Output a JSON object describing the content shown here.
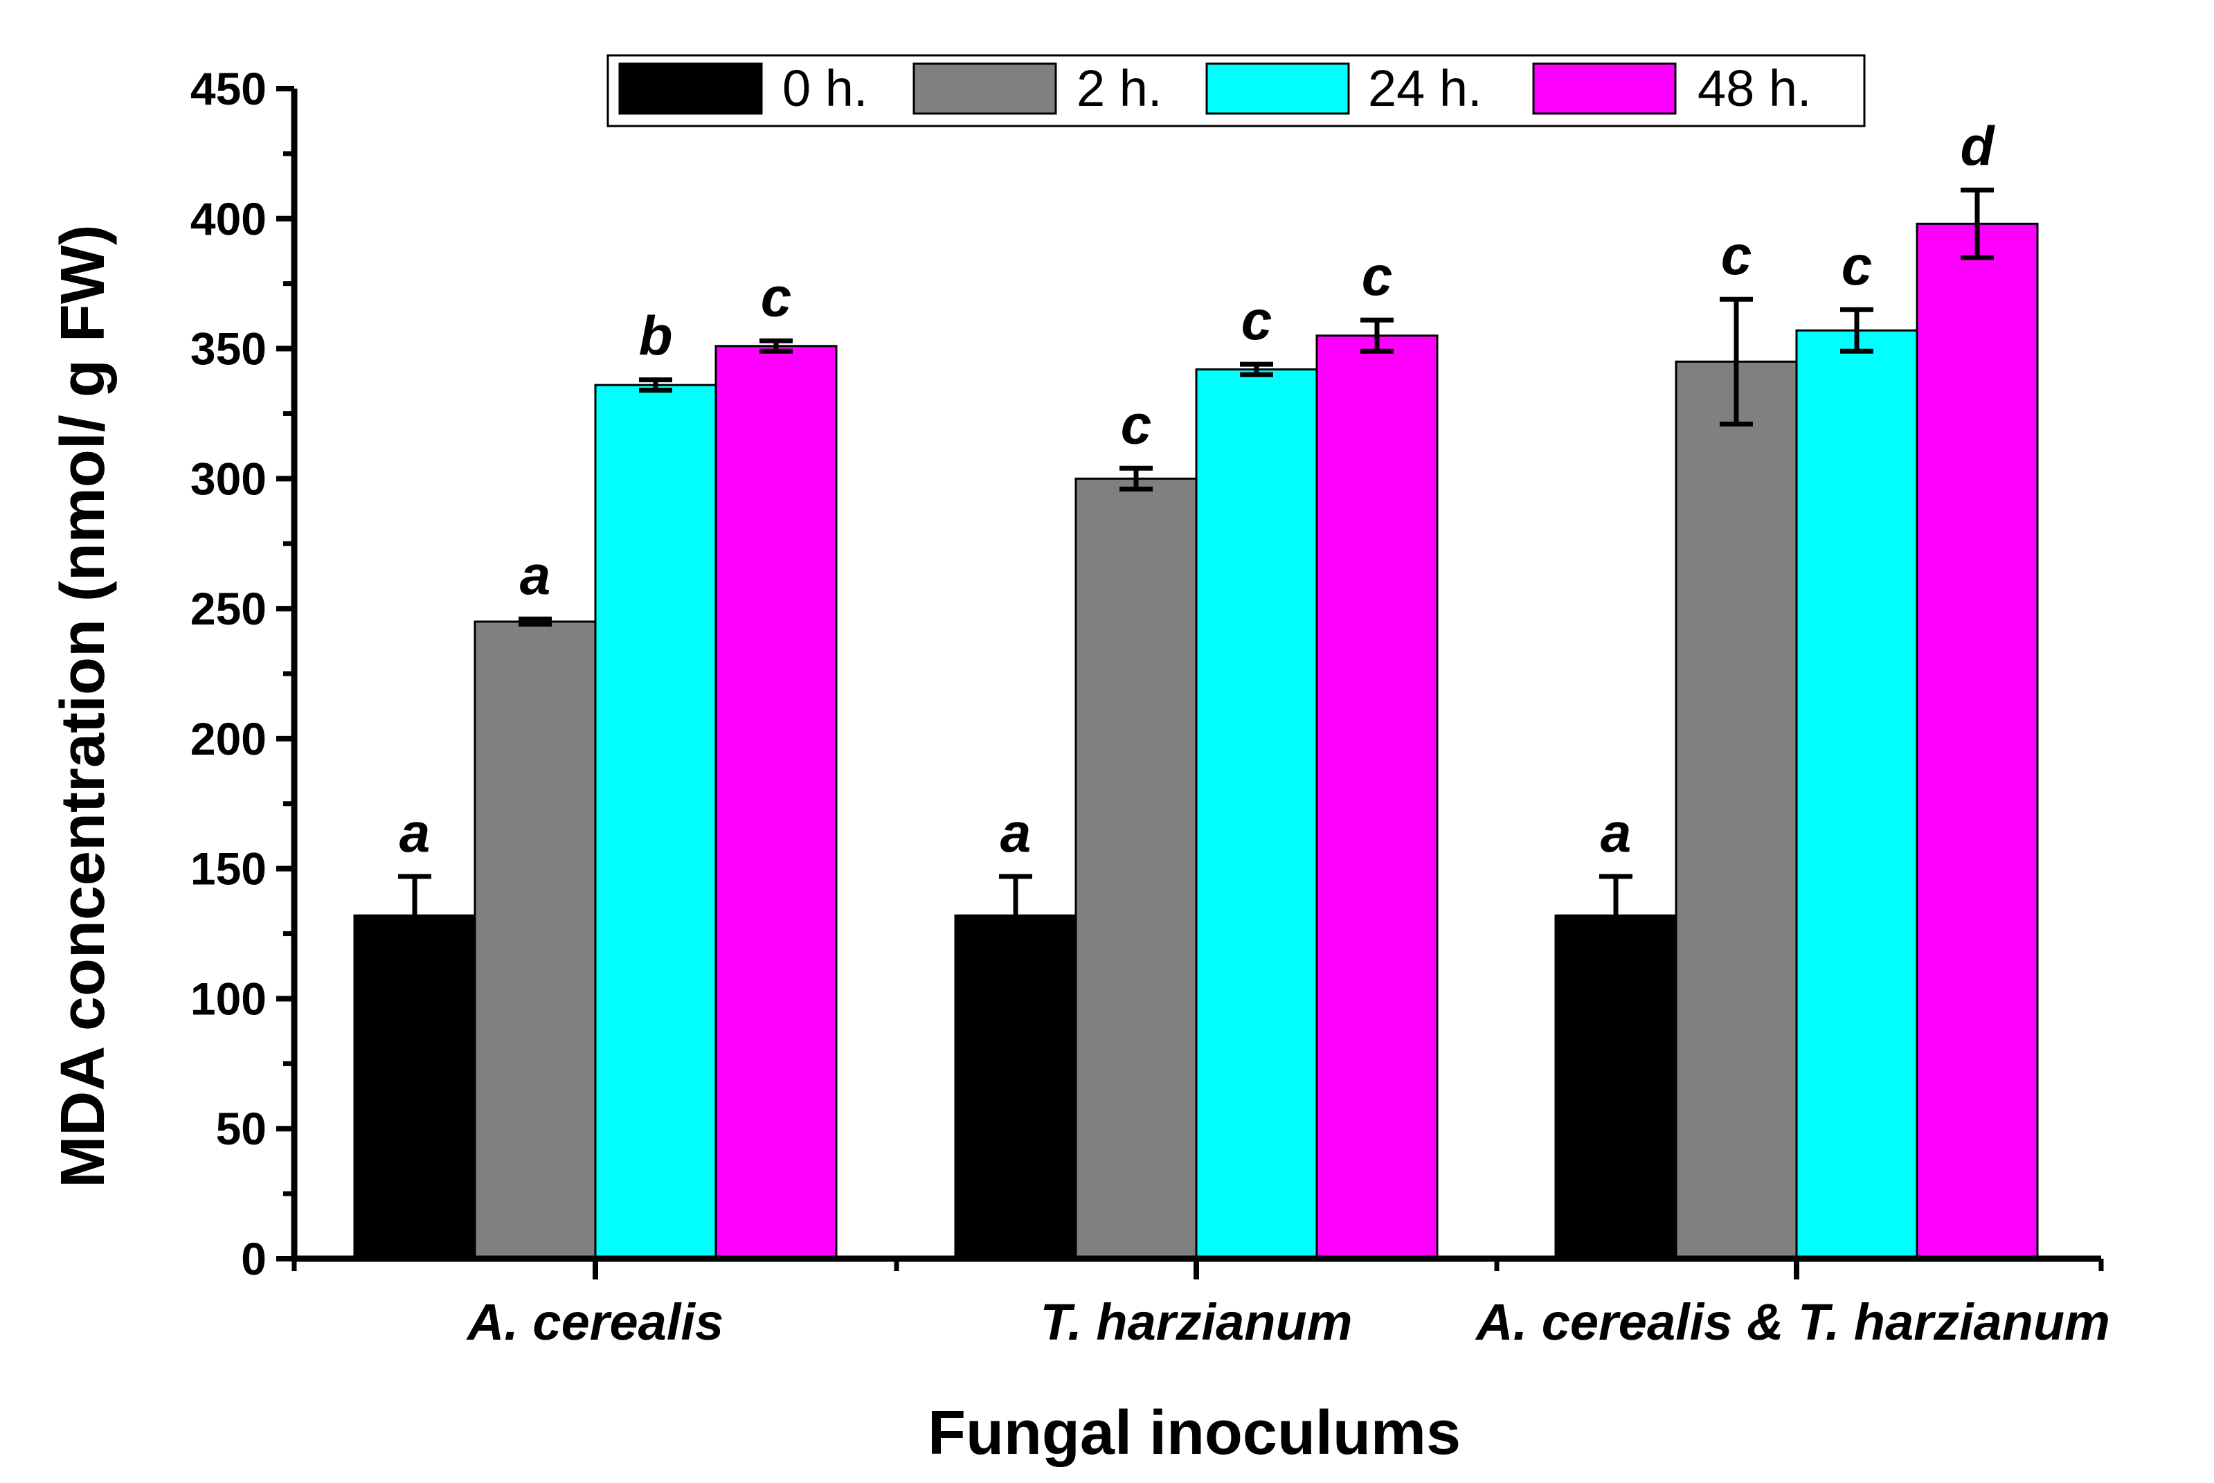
{
  "chart_data": {
    "type": "bar",
    "title": "",
    "xlabel": "Fungal inoculums",
    "ylabel": "MDA concentration (nmol/ g FW)",
    "ylim": [
      0,
      450
    ],
    "yticks": [
      0,
      50,
      100,
      150,
      200,
      250,
      300,
      350,
      400,
      450
    ],
    "grid": false,
    "legend_position": "top",
    "categories": [
      "A. cerealis",
      "T. harzianum",
      "A. cerealis & T. harzianum"
    ],
    "series": [
      {
        "name": "0 h.",
        "color": "#000000",
        "values": [
          132,
          132,
          132
        ],
        "errors": [
          15,
          15,
          15
        ],
        "letters": [
          "a",
          "a",
          "a"
        ]
      },
      {
        "name": "2 h.",
        "color": "#808080",
        "values": [
          245,
          300,
          345
        ],
        "errors": [
          1,
          4,
          24
        ],
        "letters": [
          "a",
          "c",
          "c"
        ]
      },
      {
        "name": "24 h.",
        "color": "#00FFFF",
        "values": [
          336,
          342,
          357
        ],
        "errors": [
          2,
          2,
          8
        ],
        "letters": [
          "b",
          "c",
          "c"
        ]
      },
      {
        "name": "48 h.",
        "color": "#FF00FF",
        "values": [
          351,
          355,
          398
        ],
        "errors": [
          2,
          6,
          13
        ],
        "letters": [
          "c",
          "c",
          "d"
        ]
      }
    ]
  }
}
